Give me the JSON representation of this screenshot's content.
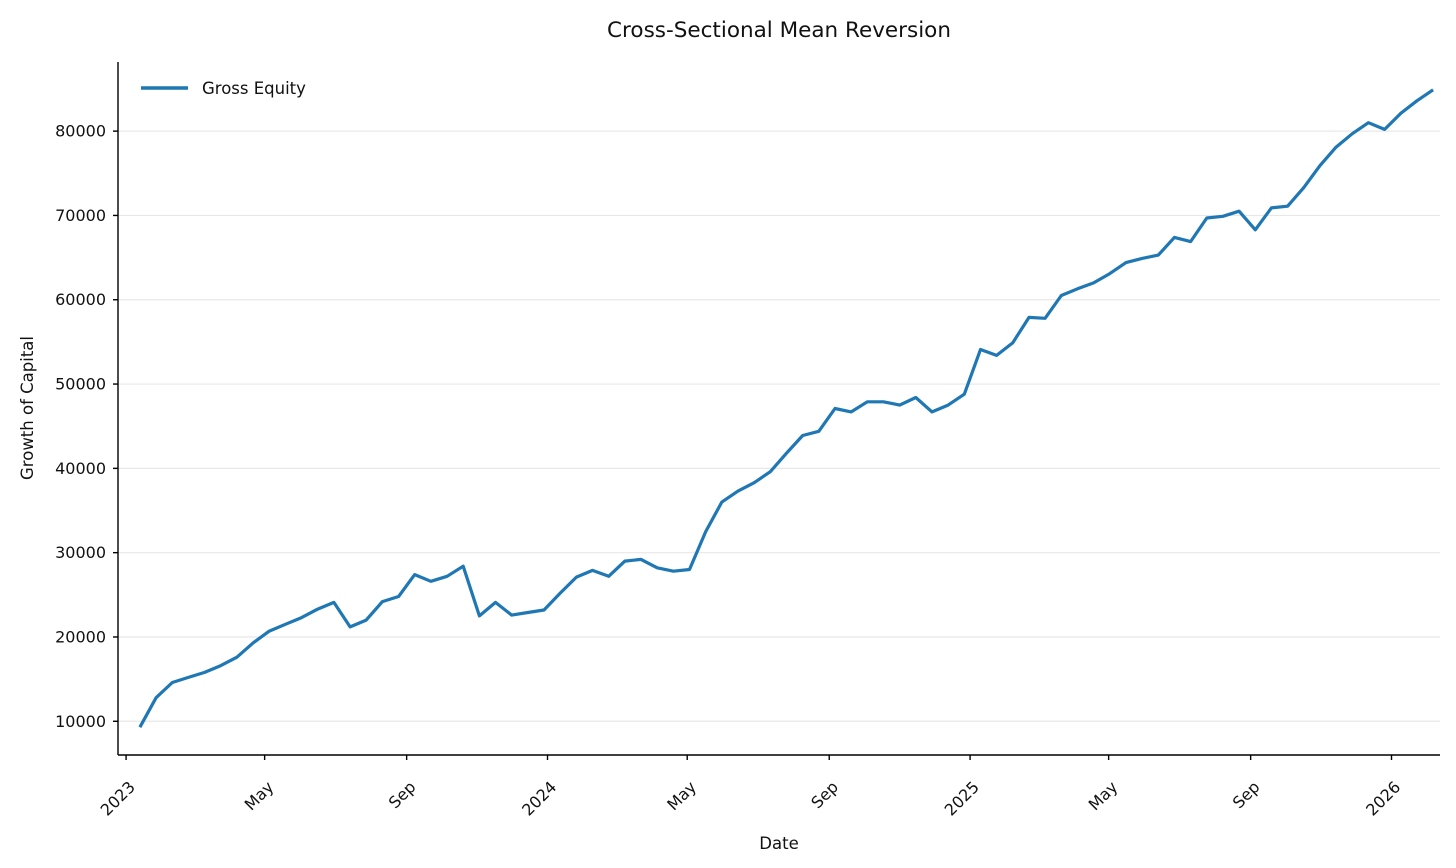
{
  "chart_data": {
    "type": "line",
    "title": "Cross-Sectional Mean Reversion",
    "xlabel": "Date",
    "ylabel": "Growth of Capital",
    "grid": "horizontal",
    "grid_color": "#e8e8e8",
    "axis_color": "#000000",
    "text_color": "#111111",
    "background": "#ffffff",
    "ylim": [
      6000,
      88200
    ],
    "xlim": [
      "2022-12-25",
      "2026-02-12"
    ],
    "y_ticks": [
      10000,
      20000,
      30000,
      40000,
      50000,
      60000,
      70000,
      80000
    ],
    "x_ticks": [
      {
        "date": "2023-01-01",
        "label": "2023"
      },
      {
        "date": "2023-05-01",
        "label": "May"
      },
      {
        "date": "2023-09-01",
        "label": "Sep"
      },
      {
        "date": "2024-01-01",
        "label": "2024"
      },
      {
        "date": "2024-05-01",
        "label": "May"
      },
      {
        "date": "2024-09-01",
        "label": "Sep"
      },
      {
        "date": "2025-01-01",
        "label": "2025"
      },
      {
        "date": "2025-05-01",
        "label": "May"
      },
      {
        "date": "2025-09-01",
        "label": "Sep"
      },
      {
        "date": "2026-01-01",
        "label": "2026"
      }
    ],
    "legend": {
      "position": "upper-left",
      "frame": false,
      "entries": [
        {
          "label": "Gross Equity",
          "color": "#1f77b4"
        }
      ]
    },
    "series": [
      {
        "name": "Gross Equity",
        "color": "#1f77b4",
        "line_width": 3.2,
        "x": [
          "2023-01-13",
          "2023-01-27",
          "2023-02-10",
          "2023-02-24",
          "2023-03-10",
          "2023-03-24",
          "2023-04-07",
          "2023-04-21",
          "2023-05-05",
          "2023-05-19",
          "2023-06-02",
          "2023-06-16",
          "2023-06-30",
          "2023-07-14",
          "2023-07-28",
          "2023-08-11",
          "2023-08-25",
          "2023-09-08",
          "2023-09-22",
          "2023-10-06",
          "2023-10-20",
          "2023-11-03",
          "2023-11-17",
          "2023-12-01",
          "2023-12-15",
          "2023-12-29",
          "2024-01-12",
          "2024-01-26",
          "2024-02-09",
          "2024-02-23",
          "2024-03-08",
          "2024-03-22",
          "2024-04-05",
          "2024-04-19",
          "2024-05-03",
          "2024-05-17",
          "2024-05-31",
          "2024-06-14",
          "2024-06-28",
          "2024-07-12",
          "2024-07-26",
          "2024-08-09",
          "2024-08-23",
          "2024-09-06",
          "2024-09-20",
          "2024-10-04",
          "2024-10-18",
          "2024-11-01",
          "2024-11-15",
          "2024-11-29",
          "2024-12-13",
          "2024-12-27",
          "2025-01-10",
          "2025-01-24",
          "2025-02-07",
          "2025-02-21",
          "2025-03-07",
          "2025-03-21",
          "2025-04-04",
          "2025-04-18",
          "2025-05-02",
          "2025-05-16",
          "2025-05-30",
          "2025-06-13",
          "2025-06-27",
          "2025-07-11",
          "2025-07-25",
          "2025-08-08",
          "2025-08-22",
          "2025-09-05",
          "2025-09-19",
          "2025-10-03",
          "2025-10-17",
          "2025-10-31",
          "2025-11-14",
          "2025-11-28",
          "2025-12-12",
          "2025-12-26",
          "2026-01-09",
          "2026-01-23",
          "2026-02-06"
        ],
        "values": [
          9300,
          12800,
          14600,
          15200,
          15800,
          16600,
          17600,
          19300,
          20700,
          21500,
          22300,
          23300,
          24100,
          21200,
          22000,
          24200,
          24800,
          27400,
          26600,
          27200,
          28400,
          22500,
          24100,
          22600,
          22900,
          23200,
          25200,
          27100,
          27900,
          27200,
          29000,
          29200,
          28200,
          27800,
          28000,
          32500,
          36000,
          37300,
          38300,
          39600,
          41800,
          43900,
          44400,
          47100,
          46700,
          47900,
          47900,
          47500,
          48400,
          46700,
          47500,
          48800,
          54100,
          53400,
          54900,
          57900,
          57800,
          60500,
          61300,
          62000,
          63100,
          64400,
          64900,
          65300,
          67400,
          66900,
          69700,
          69900,
          70500,
          68300,
          70900,
          71100,
          73300,
          75900,
          78100,
          79700,
          81000,
          80200,
          82100,
          83600,
          84900
        ]
      }
    ]
  },
  "layout_text": {
    "note": ""
  }
}
